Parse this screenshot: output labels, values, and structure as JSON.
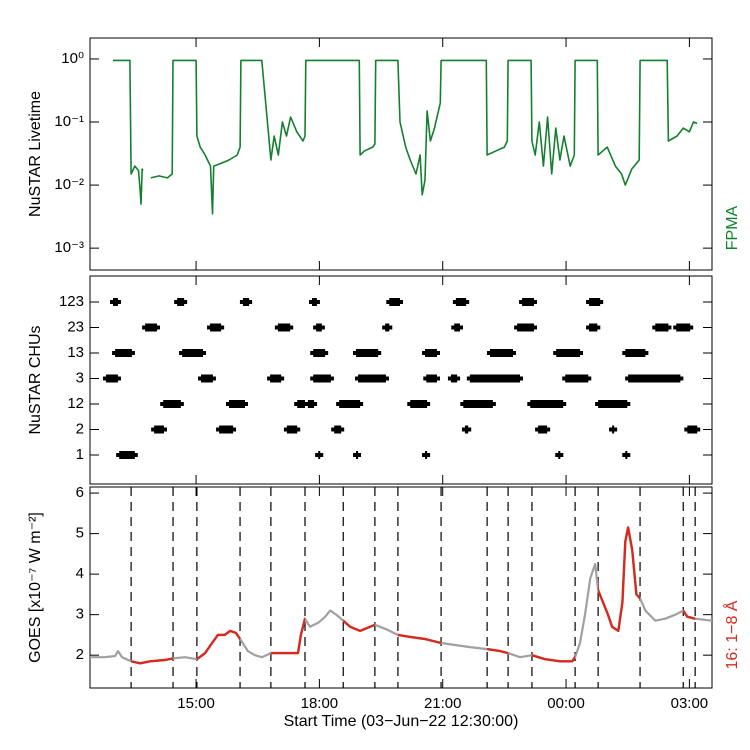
{
  "chart_data": [
    {
      "type": "line",
      "ylabel": "NuSTAR Livetime",
      "right_label": "FPMA",
      "color": "#14802e",
      "ylog": true,
      "xlim": [
        12.42,
        27.55
      ],
      "xticks": [
        15,
        18,
        21,
        24,
        27
      ],
      "ylim": [
        0.00045,
        2.15
      ],
      "yticks": [
        {
          "value": 1,
          "label": "10⁰"
        },
        {
          "value": 0.1,
          "label": "10⁻¹"
        },
        {
          "value": 0.01,
          "label": "10⁻²"
        },
        {
          "value": 0.001,
          "label": "10⁻³"
        }
      ],
      "x": [
        12.98,
        13.39,
        13.42,
        13.51,
        13.6,
        13.64,
        13.66,
        13.69,
        13.71,
        13.8,
        13.9,
        14.1,
        14.3,
        14.42,
        14.44,
        15.0,
        15.02,
        15.1,
        15.22,
        15.35,
        15.4,
        15.43,
        15.6,
        15.8,
        16.0,
        16.07,
        16.09,
        16.6,
        16.82,
        16.9,
        17.0,
        17.1,
        17.2,
        17.3,
        17.45,
        17.6,
        17.65,
        17.67,
        18.97,
        18.99,
        19.1,
        19.3,
        19.35,
        19.37,
        19.91,
        19.96,
        20.1,
        20.21,
        20.35,
        20.45,
        20.5,
        20.57,
        20.62,
        20.7,
        20.8,
        20.94,
        20.96,
        22.06,
        22.08,
        22.3,
        22.5,
        22.57,
        22.59,
        23.15,
        23.17,
        23.25,
        23.35,
        23.45,
        23.55,
        23.65,
        23.75,
        23.85,
        23.95,
        24.1,
        24.2,
        24.22,
        24.76,
        24.78,
        25.0,
        25.2,
        25.35,
        25.44,
        25.6,
        25.78,
        25.8,
        26.46,
        26.49,
        26.7,
        26.85,
        27.0,
        27.1,
        27.19
      ],
      "values": [
        0.95,
        0.95,
        0.015,
        0.02,
        0.017,
        0.008,
        0.005,
        0.018,
        0.017,
        null,
        0.013,
        0.014,
        0.013,
        0.015,
        0.95,
        0.95,
        0.06,
        0.04,
        0.03,
        0.02,
        0.0035,
        0.02,
        0.022,
        0.025,
        0.03,
        0.04,
        0.95,
        0.95,
        0.025,
        0.06,
        0.03,
        0.1,
        0.06,
        0.12,
        0.07,
        0.05,
        0.06,
        0.95,
        0.95,
        0.03,
        0.035,
        0.04,
        0.045,
        0.95,
        0.95,
        0.1,
        0.04,
        0.025,
        0.015,
        0.03,
        0.007,
        0.012,
        0.15,
        0.05,
        0.08,
        0.2,
        0.95,
        0.95,
        0.03,
        0.035,
        0.04,
        0.05,
        0.95,
        0.95,
        0.05,
        0.03,
        0.1,
        0.02,
        0.12,
        0.015,
        0.08,
        0.025,
        0.06,
        0.02,
        0.03,
        0.95,
        0.95,
        0.03,
        0.04,
        0.02,
        0.015,
        0.01,
        0.018,
        0.025,
        0.95,
        0.95,
        0.05,
        0.06,
        0.08,
        0.07,
        0.1,
        0.095
      ]
    },
    {
      "type": "gantt",
      "ylabel": "NuSTAR CHUs",
      "color": "#000000",
      "xlim": [
        12.42,
        27.55
      ],
      "xticks": [
        15,
        18,
        21,
        24,
        27
      ],
      "categories": [
        "1",
        "2",
        "12",
        "3",
        "13",
        "23",
        "123"
      ],
      "segments": [
        [
          [
            13.13,
            13.51
          ],
          [
            17.97,
            18.02
          ],
          [
            18.89,
            18.94
          ],
          [
            20.57,
            20.62
          ],
          [
            23.81,
            23.86
          ],
          [
            25.44,
            25.49
          ]
        ],
        [
          [
            13.98,
            14.22
          ],
          [
            15.56,
            15.9
          ],
          [
            17.21,
            17.46
          ],
          [
            18.36,
            18.53
          ],
          [
            21.54,
            21.62
          ],
          [
            23.32,
            23.54
          ],
          [
            25.12,
            25.17
          ],
          [
            26.95,
            27.19
          ]
        ],
        [
          [
            14.2,
            14.63
          ],
          [
            15.8,
            16.19
          ],
          [
            17.46,
            17.65
          ],
          [
            17.72,
            17.87
          ],
          [
            18.48,
            18.99
          ],
          [
            20.21,
            20.62
          ],
          [
            21.5,
            22.22
          ],
          [
            23.13,
            23.93
          ],
          [
            24.78,
            25.49
          ]
        ],
        [
          [
            12.81,
            13.1
          ],
          [
            15.12,
            15.41
          ],
          [
            16.8,
            17.07
          ],
          [
            17.85,
            18.28
          ],
          [
            18.94,
            19.62
          ],
          [
            20.6,
            20.86
          ],
          [
            21.2,
            21.35
          ],
          [
            21.66,
            22.88
          ],
          [
            23.98,
            24.54
          ],
          [
            25.51,
            26.78
          ]
        ],
        [
          [
            13.03,
            13.44
          ],
          [
            14.66,
            15.17
          ],
          [
            17.85,
            18.14
          ],
          [
            18.89,
            19.43
          ],
          [
            20.57,
            20.86
          ],
          [
            22.15,
            22.71
          ],
          [
            23.76,
            24.34
          ],
          [
            25.44,
            25.93
          ]
        ],
        [
          [
            13.76,
            14.05
          ],
          [
            15.34,
            15.61
          ],
          [
            16.99,
            17.29
          ],
          [
            17.92,
            18.06
          ],
          [
            19.6,
            19.7
          ],
          [
            21.28,
            21.42
          ],
          [
            22.81,
            23.22
          ],
          [
            24.56,
            24.76
          ],
          [
            26.17,
            26.49
          ],
          [
            26.68,
            27.02
          ]
        ],
        [
          [
            12.98,
            13.1
          ],
          [
            14.54,
            14.71
          ],
          [
            16.14,
            16.29
          ],
          [
            17.82,
            17.94
          ],
          [
            19.7,
            19.96
          ],
          [
            21.32,
            21.57
          ],
          [
            22.93,
            23.22
          ],
          [
            24.56,
            24.83
          ]
        ]
      ]
    },
    {
      "type": "line",
      "ylabel": "GOES [x10⁻⁷ W m⁻²]",
      "right_label": "16: 1−8 Å",
      "xlabel": "Start Time (03−Jun−22 12:30:00)",
      "color": "#a0a0a0",
      "highlight_color": "#d62a1e",
      "xlim": [
        12.42,
        27.55
      ],
      "xticks": [
        {
          "value": 15,
          "label": "15:00"
        },
        {
          "value": 18,
          "label": "18:00"
        },
        {
          "value": 21,
          "label": "21:00"
        },
        {
          "value": 24,
          "label": "00:00"
        },
        {
          "value": 27,
          "label": "03:00"
        }
      ],
      "ylim": [
        1.19,
        6.15
      ],
      "yticks": [
        2,
        3,
        4,
        5,
        6
      ],
      "vlines": [
        13.42,
        14.44,
        15.02,
        16.07,
        16.82,
        17.65,
        18.58,
        19.35,
        19.91,
        20.96,
        22.08,
        22.59,
        23.17,
        24.22,
        24.78,
        25.8,
        26.85,
        27.14
      ],
      "x": [
        12.42,
        12.78,
        13.03,
        13.1,
        13.2,
        13.42,
        13.64,
        13.88,
        14.24,
        14.44,
        14.73,
        15.02,
        15.22,
        15.39,
        15.53,
        15.7,
        15.83,
        15.97,
        16.07,
        16.26,
        16.43,
        16.6,
        16.82,
        17.16,
        17.48,
        17.55,
        17.65,
        17.77,
        17.97,
        18.14,
        18.26,
        18.41,
        18.58,
        18.75,
        18.99,
        19.23,
        19.35,
        19.6,
        19.91,
        20.21,
        20.57,
        20.96,
        21.3,
        21.66,
        22.08,
        22.4,
        22.59,
        22.88,
        23.17,
        23.49,
        23.86,
        24.15,
        24.22,
        24.34,
        24.46,
        24.59,
        24.71,
        24.78,
        24.9,
        25.02,
        25.12,
        25.27,
        25.37,
        25.44,
        25.51,
        25.61,
        25.71,
        25.8,
        25.93,
        26.17,
        26.41,
        26.66,
        26.85,
        26.95,
        27.14,
        27.55
      ],
      "values": [
        1.95,
        1.95,
        1.98,
        2.1,
        1.95,
        1.85,
        1.8,
        1.85,
        1.88,
        1.92,
        1.95,
        1.9,
        2.05,
        2.3,
        2.5,
        2.5,
        2.6,
        2.55,
        2.4,
        2.1,
        2.0,
        1.95,
        2.05,
        2.05,
        2.05,
        2.5,
        2.9,
        2.7,
        2.8,
        2.95,
        3.1,
        3.0,
        2.85,
        2.7,
        2.6,
        2.7,
        2.75,
        2.65,
        2.5,
        2.45,
        2.4,
        2.3,
        2.25,
        2.2,
        2.15,
        2.1,
        2.05,
        1.95,
        2.0,
        1.9,
        1.85,
        1.85,
        1.95,
        2.3,
        3.0,
        3.9,
        4.25,
        3.6,
        3.3,
        3.0,
        2.7,
        2.6,
        3.3,
        4.8,
        5.15,
        4.6,
        3.5,
        3.4,
        3.1,
        2.85,
        2.9,
        3.0,
        3.1,
        2.95,
        2.9,
        2.85
      ]
    }
  ]
}
